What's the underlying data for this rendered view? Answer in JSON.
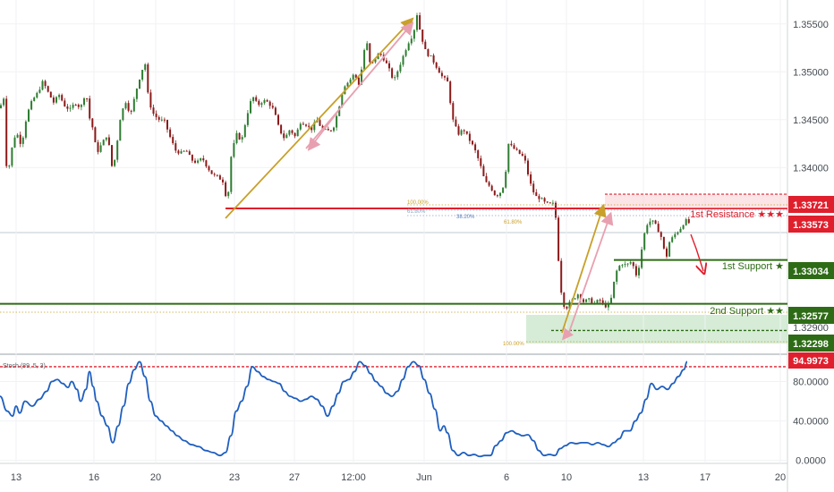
{
  "chart_data": [
    {
      "type": "candlestick",
      "title": "",
      "instrument": "",
      "y_ticks": [
        "1.35500",
        "1.35000",
        "1.34500",
        "1.34000"
      ],
      "ylim": [
        1.3205,
        1.3575
      ],
      "x_tick_labels": [
        "13",
        "16",
        "20",
        "23",
        "27",
        "12:00",
        "Jun",
        "6",
        "10",
        "13",
        "17",
        "20"
      ],
      "price_path": [
        [
          0,
          1.3462
        ],
        [
          4,
          1.3475
        ],
        [
          8,
          1.3385
        ],
        [
          12,
          1.3415
        ],
        [
          18,
          1.3438
        ],
        [
          24,
          1.3423
        ],
        [
          30,
          1.3455
        ],
        [
          36,
          1.347
        ],
        [
          42,
          1.3478
        ],
        [
          48,
          1.349
        ],
        [
          54,
          1.3478
        ],
        [
          60,
          1.3468
        ],
        [
          66,
          1.3476
        ],
        [
          72,
          1.3465
        ],
        [
          78,
          1.346
        ],
        [
          84,
          1.3468
        ],
        [
          90,
          1.3462
        ],
        [
          96,
          1.348
        ],
        [
          100,
          1.3452
        ],
        [
          104,
          1.344
        ],
        [
          108,
          1.3415
        ],
        [
          114,
          1.3425
        ],
        [
          120,
          1.3435
        ],
        [
          126,
          1.3395
        ],
        [
          130,
          1.342
        ],
        [
          134,
          1.345
        ],
        [
          140,
          1.347
        ],
        [
          146,
          1.3455
        ],
        [
          152,
          1.348
        ],
        [
          158,
          1.35
        ],
        [
          162,
          1.351
        ],
        [
          166,
          1.347
        ],
        [
          172,
          1.3455
        ],
        [
          178,
          1.345
        ],
        [
          184,
          1.3448
        ],
        [
          190,
          1.3432
        ],
        [
          196,
          1.3418
        ],
        [
          202,
          1.3415
        ],
        [
          208,
          1.3418
        ],
        [
          214,
          1.3408
        ],
        [
          220,
          1.3405
        ],
        [
          226,
          1.341
        ],
        [
          232,
          1.34
        ],
        [
          238,
          1.3392
        ],
        [
          244,
          1.339
        ],
        [
          250,
          1.3385
        ],
        [
          254,
          1.336
        ],
        [
          258,
          1.341
        ],
        [
          264,
          1.3435
        ],
        [
          270,
          1.3428
        ],
        [
          276,
          1.3455
        ],
        [
          282,
          1.3475
        ],
        [
          288,
          1.3465
        ],
        [
          294,
          1.347
        ],
        [
          300,
          1.3468
        ],
        [
          306,
          1.346
        ],
        [
          312,
          1.344
        ],
        [
          318,
          1.343
        ],
        [
          324,
          1.344
        ],
        [
          330,
          1.3432
        ],
        [
          336,
          1.3448
        ],
        [
          342,
          1.3445
        ],
        [
          348,
          1.344
        ],
        [
          354,
          1.345
        ],
        [
          360,
          1.344
        ],
        [
          366,
          1.3438
        ],
        [
          372,
          1.344
        ],
        [
          378,
          1.346
        ],
        [
          384,
          1.3485
        ],
        [
          390,
          1.349
        ],
        [
          396,
          1.3498
        ],
        [
          402,
          1.3485
        ],
        [
          406,
          1.352
        ],
        [
          410,
          1.353
        ],
        [
          414,
          1.3505
        ],
        [
          418,
          1.3512
        ],
        [
          424,
          1.352
        ],
        [
          430,
          1.3512
        ],
        [
          436,
          1.35
        ],
        [
          440,
          1.349
        ],
        [
          444,
          1.35
        ],
        [
          450,
          1.3515
        ],
        [
          456,
          1.353
        ],
        [
          462,
          1.354
        ],
        [
          466,
          1.356
        ],
        [
          470,
          1.354
        ],
        [
          476,
          1.352
        ],
        [
          482,
          1.3515
        ],
        [
          488,
          1.3505
        ],
        [
          494,
          1.3495
        ],
        [
          500,
          1.349
        ],
        [
          506,
          1.345
        ],
        [
          512,
          1.3435
        ],
        [
          518,
          1.344
        ],
        [
          524,
          1.343
        ],
        [
          530,
          1.342
        ],
        [
          536,
          1.3405
        ],
        [
          542,
          1.3385
        ],
        [
          548,
          1.338
        ],
        [
          554,
          1.337
        ],
        [
          560,
          1.3375
        ],
        [
          564,
          1.3385
        ],
        [
          568,
          1.3425
        ],
        [
          574,
          1.342
        ],
        [
          580,
          1.3415
        ],
        [
          586,
          1.341
        ],
        [
          592,
          1.3385
        ],
        [
          598,
          1.337
        ],
        [
          604,
          1.3368
        ],
        [
          610,
          1.3362
        ],
        [
          616,
          1.3362
        ],
        [
          620,
          1.3362
        ],
        [
          624,
          1.3305
        ],
        [
          628,
          1.3262
        ],
        [
          632,
          1.3252
        ],
        [
          636,
          1.3258
        ],
        [
          640,
          1.3262
        ],
        [
          646,
          1.3268
        ],
        [
          652,
          1.326
        ],
        [
          658,
          1.3262
        ],
        [
          664,
          1.3258
        ],
        [
          670,
          1.3262
        ],
        [
          676,
          1.3255
        ],
        [
          682,
          1.3258
        ],
        [
          688,
          1.329
        ],
        [
          694,
          1.33
        ],
        [
          700,
          1.3298
        ],
        [
          706,
          1.3302
        ],
        [
          712,
          1.3285
        ],
        [
          718,
          1.332
        ],
        [
          722,
          1.334
        ],
        [
          728,
          1.3345
        ],
        [
          734,
          1.3338
        ],
        [
          740,
          1.3325
        ],
        [
          744,
          1.3303
        ],
        [
          748,
          1.3322
        ],
        [
          754,
          1.333
        ],
        [
          760,
          1.3336
        ],
        [
          766,
          1.3345
        ],
        [
          770,
          1.3342
        ]
      ],
      "levels": [
        {
          "name": "1st Resistance",
          "label": "1st Resistance ★★★",
          "price": 1.33573,
          "price_label": "1.33573",
          "color": "#e01f2d"
        },
        {
          "name": "upper-resistance-level",
          "price": 1.33721,
          "price_label": "1.33721",
          "color": "#e01f2d"
        },
        {
          "name": "1st Support",
          "label": "1st Support ★",
          "price": 1.33034,
          "price_label": "1.33034",
          "color": "#2e6b16"
        },
        {
          "name": "2nd Support",
          "label": "2nd Support ★★",
          "price": 1.32577,
          "price_label": "1.32577",
          "color": "#2e6b16"
        },
        {
          "name": "lower-support-level",
          "price": 1.32298,
          "price_label": "1.32298",
          "color": "#2e6b16"
        }
      ],
      "partial_price_label": "1.32900",
      "fib_labels": {
        "top_100": "100.00%",
        "top_618": "61.80%",
        "top_382": "38.20%",
        "near_resistance": "61.80%",
        "bottom_100": "100.00%"
      },
      "colors": {
        "up": "#2e7d32",
        "down": "#8b1a1a",
        "resistance": "#e01f2d",
        "support": "#2e6b16",
        "zone": "#c8e6c9",
        "arrow_gold": "#c8a02a",
        "arrow_pink": "#e8a0b0",
        "stoch": "#1f5fbf"
      }
    },
    {
      "type": "line",
      "title": "",
      "legend_label": "Stoch (89, 5, 3)",
      "y_ticks": [
        "80.0000",
        "40.0000",
        "0.0000"
      ],
      "ylim": [
        -3,
        104
      ],
      "overbought_label": "94.9973",
      "overbought_value": 94.9973,
      "series": [
        {
          "values": [
            [
              0,
              65
            ],
            [
              8,
              50
            ],
            [
              14,
              45
            ],
            [
              18,
              55
            ],
            [
              22,
              48
            ],
            [
              28,
              60
            ],
            [
              36,
              55
            ],
            [
              44,
              62
            ],
            [
              52,
              70
            ],
            [
              58,
              80
            ],
            [
              64,
              82
            ],
            [
              70,
              78
            ],
            [
              76,
              74
            ],
            [
              80,
              80
            ],
            [
              86,
              72
            ],
            [
              90,
              60
            ],
            [
              96,
              72
            ],
            [
              100,
              90
            ],
            [
              104,
              75
            ],
            [
              108,
              60
            ],
            [
              114,
              45
            ],
            [
              120,
              35
            ],
            [
              126,
              18
            ],
            [
              132,
              35
            ],
            [
              138,
              55
            ],
            [
              144,
              78
            ],
            [
              150,
              92
            ],
            [
              156,
              100
            ],
            [
              162,
              85
            ],
            [
              168,
              60
            ],
            [
              174,
              45
            ],
            [
              180,
              40
            ],
            [
              186,
              35
            ],
            [
              192,
              30
            ],
            [
              198,
              25
            ],
            [
              206,
              20
            ],
            [
              214,
              16
            ],
            [
              222,
              14
            ],
            [
              230,
              10
            ],
            [
              238,
              8
            ],
            [
              246,
              5
            ],
            [
              252,
              8
            ],
            [
              258,
              25
            ],
            [
              264,
              50
            ],
            [
              270,
              60
            ],
            [
              276,
              75
            ],
            [
              282,
              95
            ],
            [
              288,
              90
            ],
            [
              294,
              85
            ],
            [
              300,
              82
            ],
            [
              306,
              80
            ],
            [
              312,
              78
            ],
            [
              318,
              70
            ],
            [
              324,
              65
            ],
            [
              330,
              63
            ],
            [
              336,
              60
            ],
            [
              342,
              62
            ],
            [
              348,
              65
            ],
            [
              354,
              62
            ],
            [
              360,
              55
            ],
            [
              366,
              45
            ],
            [
              372,
              55
            ],
            [
              378,
              68
            ],
            [
              384,
              80
            ],
            [
              390,
              82
            ],
            [
              396,
              90
            ],
            [
              402,
              100
            ],
            [
              408,
              96
            ],
            [
              414,
              88
            ],
            [
              420,
              80
            ],
            [
              426,
              75
            ],
            [
              432,
              68
            ],
            [
              438,
              65
            ],
            [
              444,
              70
            ],
            [
              450,
              82
            ],
            [
              456,
              95
            ],
            [
              462,
              100
            ],
            [
              468,
              96
            ],
            [
              474,
              82
            ],
            [
              480,
              68
            ],
            [
              486,
              52
            ],
            [
              492,
              30
            ],
            [
              496,
              35
            ],
            [
              500,
              28
            ],
            [
              506,
              10
            ],
            [
              512,
              5
            ],
            [
              518,
              8
            ],
            [
              524,
              5
            ],
            [
              530,
              6
            ],
            [
              536,
              4
            ],
            [
              542,
              5
            ],
            [
              548,
              5
            ],
            [
              554,
              15
            ],
            [
              560,
              20
            ],
            [
              566,
              28
            ],
            [
              572,
              30
            ],
            [
              578,
              27
            ],
            [
              584,
              25
            ],
            [
              590,
              26
            ],
            [
              596,
              20
            ],
            [
              602,
              10
            ],
            [
              608,
              5
            ],
            [
              614,
              6
            ],
            [
              620,
              5
            ],
            [
              626,
              12
            ],
            [
              632,
              15
            ],
            [
              638,
              18
            ],
            [
              644,
              17
            ],
            [
              650,
              18
            ],
            [
              656,
              18
            ],
            [
              662,
              16
            ],
            [
              668,
              18
            ],
            [
              674,
              16
            ],
            [
              680,
              14
            ],
            [
              686,
              18
            ],
            [
              692,
              22
            ],
            [
              698,
              30
            ],
            [
              704,
              30
            ],
            [
              710,
              40
            ],
            [
              716,
              48
            ],
            [
              722,
              62
            ],
            [
              728,
              78
            ],
            [
              734,
              72
            ],
            [
              740,
              75
            ],
            [
              746,
              72
            ],
            [
              752,
              78
            ],
            [
              758,
              85
            ],
            [
              764,
              92
            ],
            [
              768,
              100
            ]
          ]
        }
      ]
    }
  ]
}
